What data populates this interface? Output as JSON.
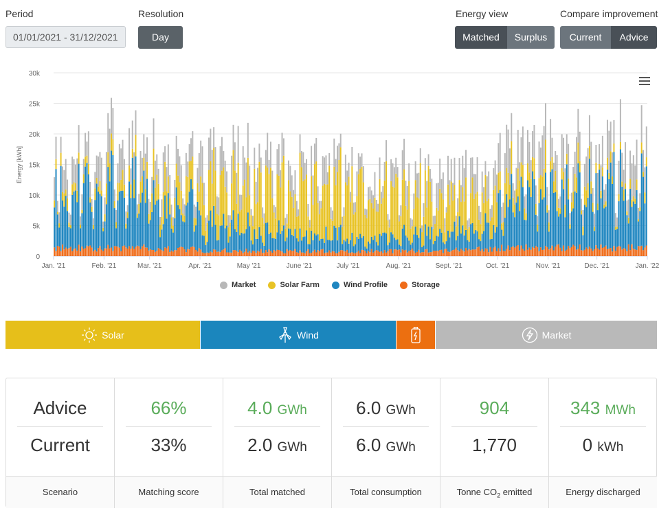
{
  "controls": {
    "period_label": "Period",
    "period_value": "01/01/2021 - 31/12/2021",
    "resolution_label": "Resolution",
    "resolution_value": "Day",
    "energy_view_label": "Energy view",
    "energy_view_options": [
      "Matched",
      "Surplus"
    ],
    "energy_view_selected": "Matched",
    "compare_label": "Compare improvement",
    "compare_options": [
      "Current",
      "Advice"
    ],
    "compare_selected": "Advice"
  },
  "chart_data": {
    "type": "bar",
    "stacked": true,
    "ylabel": "Energy [kWh]",
    "yticks": [
      "0",
      "5k",
      "10k",
      "15k",
      "20k",
      "25k",
      "30k"
    ],
    "ylim": [
      0,
      30000
    ],
    "xticks": [
      "Jan. '21",
      "Feb. '21",
      "Mar. '21",
      "Apr. '21",
      "May '21",
      "June '21",
      "July '21",
      "Aug. '21",
      "Sept. '21",
      "Oct. '21",
      "Nov. '21",
      "Dec. '21",
      "Jan. '22"
    ],
    "series_order": [
      "Storage",
      "Wind Profile",
      "Solar Farm",
      "Market"
    ],
    "monthly_profile": {
      "months": [
        "Jan",
        "Feb",
        "Mar",
        "Apr",
        "May",
        "Jun",
        "Jul",
        "Aug",
        "Sep",
        "Oct",
        "Nov",
        "Dec"
      ],
      "storage": [
        1500,
        1500,
        1300,
        1000,
        900,
        900,
        900,
        1000,
        1200,
        1500,
        1500,
        1500
      ],
      "wind": [
        10000,
        11000,
        8000,
        5000,
        3500,
        3000,
        2500,
        3000,
        4000,
        9000,
        10000,
        11000
      ],
      "solar": [
        1500,
        2500,
        4000,
        7000,
        8000,
        9000,
        8500,
        7500,
        6000,
        4000,
        2500,
        1500
      ],
      "market": [
        4000,
        4500,
        4500,
        4500,
        4000,
        3500,
        3000,
        3500,
        4000,
        5000,
        5000,
        5000
      ],
      "storage_alt_label": "",
      "approximate": true
    },
    "days": 365,
    "weekday_factor": 1.0,
    "weekend_factor": 0.45
  },
  "legend": {
    "items": [
      {
        "label": "Market",
        "color": "#b8b8b8"
      },
      {
        "label": "Solar Farm",
        "color": "#e8c325"
      },
      {
        "label": "Wind Profile",
        "color": "#1f86c0"
      },
      {
        "label": "Storage",
        "color": "#ef6c1a"
      }
    ]
  },
  "sources": {
    "solar": {
      "label": "Solar",
      "color": "#e6bf1a"
    },
    "wind": {
      "label": "Wind",
      "color": "#1b86bd"
    },
    "storage": {
      "label": "",
      "color": "#ec6f10"
    },
    "market": {
      "label": "Market",
      "color": "#b9b9b9"
    }
  },
  "stats": {
    "scenario": {
      "advice": "Advice",
      "current": "Current",
      "footer": "Scenario"
    },
    "matching": {
      "advice": "66%",
      "current": "33%",
      "footer": "Matching score"
    },
    "total_matched": {
      "advice_value": "4.0",
      "advice_unit": "GWh",
      "current_value": "2.0",
      "current_unit": "GWh",
      "footer": "Total matched"
    },
    "total_consumption": {
      "advice_value": "6.0",
      "advice_unit": "GWh",
      "current_value": "6.0",
      "current_unit": "GWh",
      "footer": "Total consumption"
    },
    "co2": {
      "advice": "904",
      "current": "1,770",
      "footer_prefix": "Tonne CO",
      "footer_sub": "2",
      "footer_suffix": " emitted"
    },
    "discharged": {
      "advice_value": "343",
      "advice_unit": "MWh",
      "current_value": "0",
      "current_unit": "kWh",
      "footer": "Energy discharged"
    }
  }
}
